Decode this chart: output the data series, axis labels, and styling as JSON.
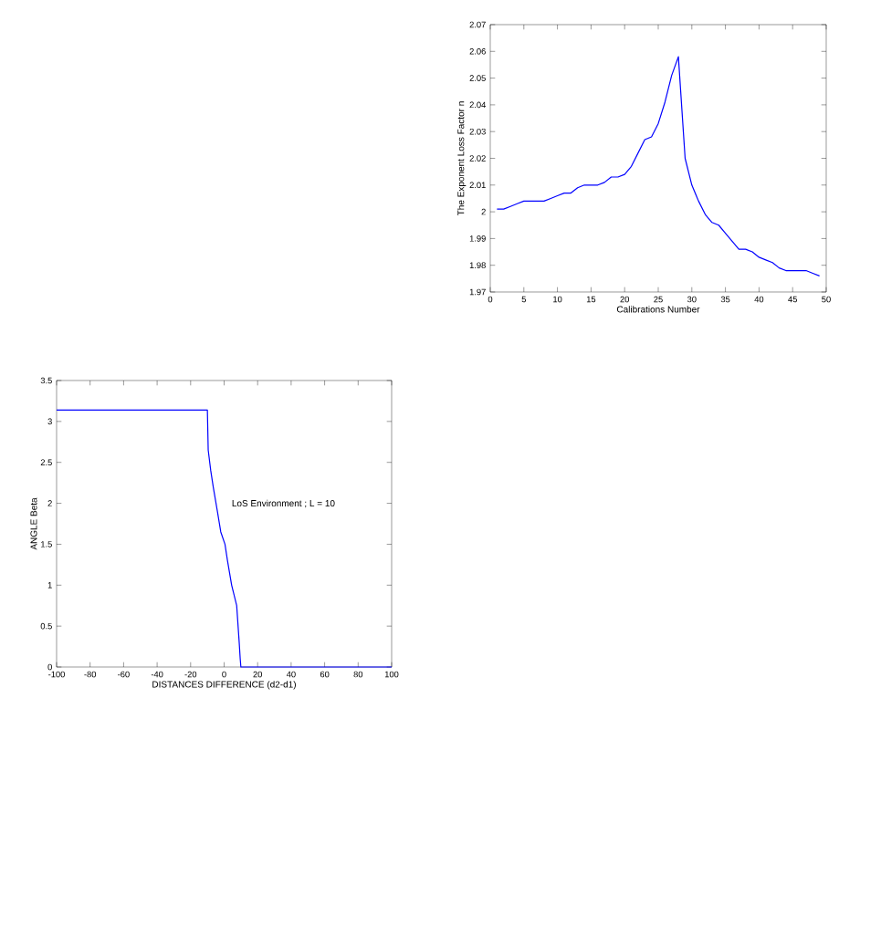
{
  "chart_data": [
    {
      "type": "line",
      "xlabel": "Calibrations Number",
      "ylabel": "The Exponent Loss Factor n",
      "xlim": [
        0,
        50
      ],
      "ylim": [
        1.97,
        2.07
      ],
      "xticks": [
        0,
        5,
        10,
        15,
        20,
        25,
        30,
        35,
        40,
        45,
        50
      ],
      "yticks": [
        1.97,
        1.98,
        1.99,
        2,
        2.01,
        2.02,
        2.03,
        2.04,
        2.05,
        2.06,
        2.07
      ],
      "series": [
        {
          "color": "#0000ff",
          "x": [
            1,
            2,
            3,
            4,
            5,
            6,
            7,
            8,
            9,
            10,
            11,
            12,
            13,
            14,
            15,
            16,
            17,
            18,
            19,
            20,
            21,
            22,
            23,
            24,
            25,
            26,
            27,
            28,
            29,
            30,
            31,
            32,
            33,
            34,
            35,
            36,
            37,
            38,
            39,
            40,
            41,
            42,
            43,
            44,
            45,
            46,
            47,
            48,
            49
          ],
          "values": [
            2.001,
            2.001,
            2.002,
            2.003,
            2.004,
            2.004,
            2.004,
            2.004,
            2.005,
            2.006,
            2.007,
            2.007,
            2.009,
            2.01,
            2.01,
            2.01,
            2.011,
            2.013,
            2.013,
            2.014,
            2.017,
            2.022,
            2.027,
            2.028,
            2.033,
            2.041,
            2.051,
            2.058,
            2.02,
            2.01,
            2.004,
            1.999,
            1.996,
            1.995,
            1.992,
            1.989,
            1.986,
            1.986,
            1.985,
            1.983,
            1.982,
            1.981,
            1.979,
            1.978,
            1.978,
            1.978,
            1.978,
            1.977,
            1.976
          ]
        }
      ]
    },
    {
      "type": "line",
      "xlabel": "DISTANCES DIFFERENCE (d2-d1)",
      "ylabel": "ANGLE Beta",
      "xlim": [
        -100,
        100
      ],
      "ylim": [
        0,
        3.5
      ],
      "xticks": [
        -100,
        -80,
        -60,
        -40,
        -20,
        0,
        20,
        40,
        60,
        80,
        100
      ],
      "yticks": [
        0,
        0.5,
        1,
        1.5,
        2,
        2.5,
        3,
        3.5
      ],
      "annotations": [
        "LoS Environment ; L = 10"
      ],
      "series": [
        {
          "color": "#0000ff",
          "x": [
            -100,
            -10,
            -9.5,
            -8,
            -6.5,
            -4,
            -2,
            0.5,
            2,
            4.5,
            7.5,
            9,
            9.6,
            10,
            100
          ],
          "values": [
            3.14,
            3.14,
            2.65,
            2.4,
            2.2,
            1.9,
            1.65,
            1.5,
            1.3,
            1.0,
            0.75,
            0.3,
            0.1,
            0,
            0
          ]
        }
      ]
    }
  ]
}
